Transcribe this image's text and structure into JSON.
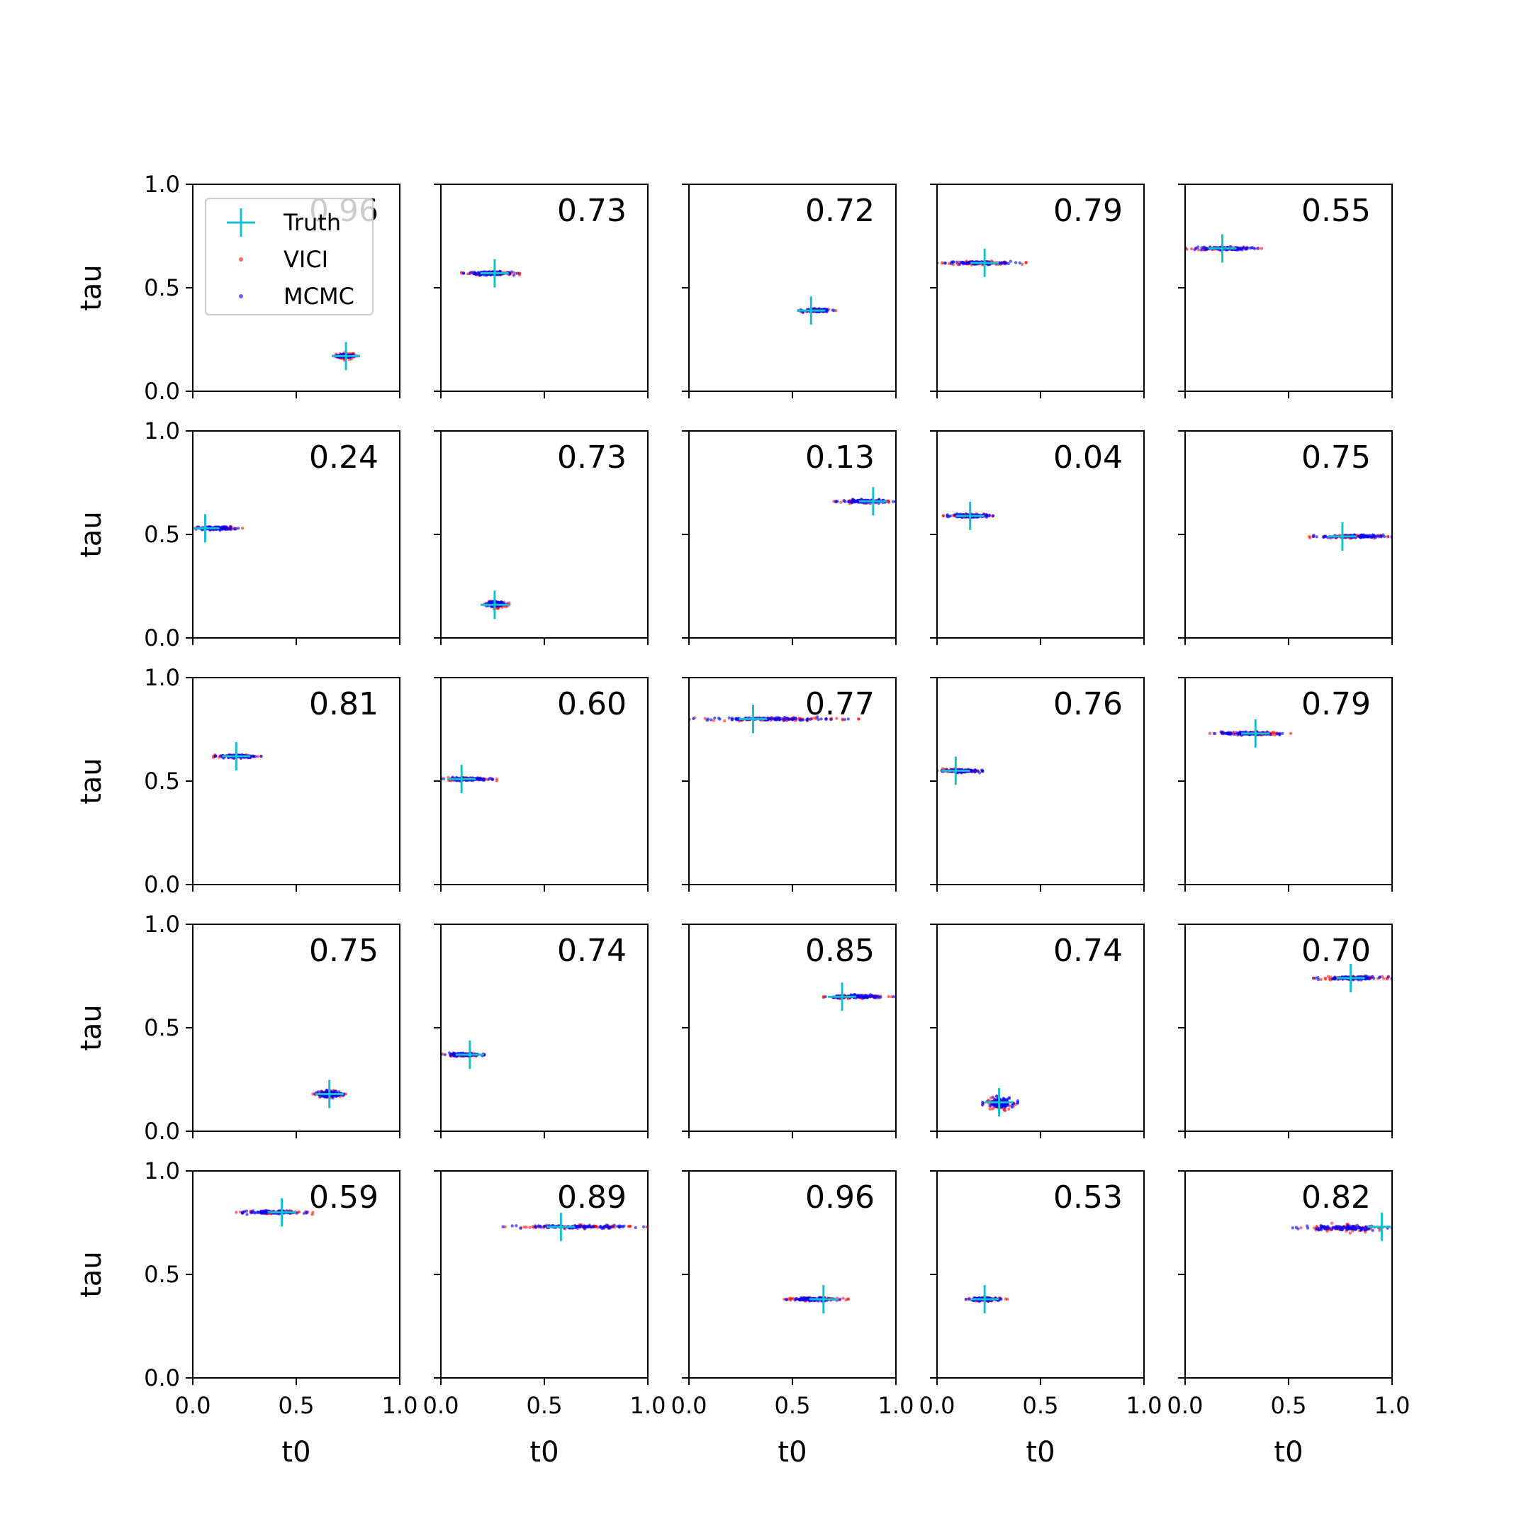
{
  "figure": {
    "xlabel": "t0",
    "ylabel": "tau",
    "xlim": [
      0,
      1
    ],
    "ylim": [
      0,
      1
    ],
    "xticks": [
      "0.0",
      "0.5",
      "1.0"
    ],
    "yticks": [
      "0.0",
      "0.5",
      "1.0"
    ],
    "colors": {
      "truth": "#17becf",
      "vici": "#ff0000",
      "mcmc": "#0000ff",
      "axes": "#000000"
    }
  },
  "legend": {
    "placement": "upper-left of first panel",
    "entries": [
      {
        "label": "Truth",
        "marker": "plus",
        "color": "#17becf"
      },
      {
        "label": "VICI",
        "marker": "dot",
        "color": "#ff0000"
      },
      {
        "label": "MCMC",
        "marker": "dot",
        "color": "#0000ff"
      }
    ]
  },
  "chart_data": {
    "type": "scatter",
    "grid": false,
    "rows": 5,
    "cols": 5,
    "panels": [
      {
        "score": "0.96",
        "truth": [
          0.74,
          0.17
        ],
        "vici": {
          "t0": [
            0.68,
            0.8
          ],
          "tau": [
            0.15,
            0.19
          ]
        },
        "mcmc": {
          "t0": [
            0.69,
            0.79
          ],
          "tau": [
            0.16,
            0.18
          ]
        }
      },
      {
        "score": "0.73",
        "truth": [
          0.26,
          0.57
        ],
        "vici": {
          "t0": [
            0.1,
            0.38
          ],
          "tau": [
            0.56,
            0.58
          ]
        },
        "mcmc": {
          "t0": [
            0.11,
            0.37
          ],
          "tau": [
            0.56,
            0.58
          ]
        }
      },
      {
        "score": "0.72",
        "truth": [
          0.59,
          0.39
        ],
        "vici": {
          "t0": [
            0.53,
            0.71
          ],
          "tau": [
            0.38,
            0.4
          ]
        },
        "mcmc": {
          "t0": [
            0.54,
            0.7
          ],
          "tau": [
            0.38,
            0.4
          ]
        }
      },
      {
        "score": "0.79",
        "truth": [
          0.23,
          0.62
        ],
        "vici": {
          "t0": [
            0.0,
            0.43
          ],
          "tau": [
            0.61,
            0.63
          ]
        },
        "mcmc": {
          "t0": [
            0.0,
            0.4
          ],
          "tau": [
            0.61,
            0.63
          ]
        }
      },
      {
        "score": "0.55",
        "truth": [
          0.18,
          0.69
        ],
        "vici": {
          "t0": [
            0.0,
            0.37
          ],
          "tau": [
            0.68,
            0.7
          ]
        },
        "mcmc": {
          "t0": [
            0.0,
            0.35
          ],
          "tau": [
            0.68,
            0.7
          ]
        }
      },
      {
        "score": "0.24",
        "truth": [
          0.06,
          0.53
        ],
        "vici": {
          "t0": [
            0.0,
            0.24
          ],
          "tau": [
            0.52,
            0.54
          ]
        },
        "mcmc": {
          "t0": [
            0.0,
            0.22
          ],
          "tau": [
            0.52,
            0.54
          ]
        }
      },
      {
        "score": "0.73",
        "truth": [
          0.26,
          0.16
        ],
        "vici": {
          "t0": [
            0.21,
            0.33
          ],
          "tau": [
            0.14,
            0.18
          ]
        },
        "mcmc": {
          "t0": [
            0.22,
            0.32
          ],
          "tau": [
            0.15,
            0.18
          ]
        }
      },
      {
        "score": "0.13",
        "truth": [
          0.89,
          0.66
        ],
        "vici": {
          "t0": [
            0.7,
            1.0
          ],
          "tau": [
            0.65,
            0.67
          ]
        },
        "mcmc": {
          "t0": [
            0.71,
            1.0
          ],
          "tau": [
            0.65,
            0.67
          ]
        }
      },
      {
        "score": "0.04",
        "truth": [
          0.16,
          0.59
        ],
        "vici": {
          "t0": [
            0.03,
            0.27
          ],
          "tau": [
            0.58,
            0.6
          ]
        },
        "mcmc": {
          "t0": [
            0.05,
            0.27
          ],
          "tau": [
            0.58,
            0.6
          ]
        }
      },
      {
        "score": "0.75",
        "truth": [
          0.76,
          0.49
        ],
        "vici": {
          "t0": [
            0.6,
            0.98
          ],
          "tau": [
            0.48,
            0.5
          ]
        },
        "mcmc": {
          "t0": [
            0.62,
            1.0
          ],
          "tau": [
            0.48,
            0.5
          ]
        }
      },
      {
        "score": "0.81",
        "truth": [
          0.21,
          0.62
        ],
        "vici": {
          "t0": [
            0.1,
            0.33
          ],
          "tau": [
            0.61,
            0.63
          ]
        },
        "mcmc": {
          "t0": [
            0.11,
            0.33
          ],
          "tau": [
            0.61,
            0.63
          ]
        }
      },
      {
        "score": "0.60",
        "truth": [
          0.1,
          0.51
        ],
        "vici": {
          "t0": [
            0.0,
            0.27
          ],
          "tau": [
            0.5,
            0.52
          ]
        },
        "mcmc": {
          "t0": [
            0.0,
            0.25
          ],
          "tau": [
            0.5,
            0.52
          ]
        }
      },
      {
        "score": "0.77",
        "truth": [
          0.31,
          0.8
        ],
        "vici": {
          "t0": [
            0.0,
            0.82
          ],
          "tau": [
            0.79,
            0.81
          ]
        },
        "mcmc": {
          "t0": [
            0.0,
            0.77
          ],
          "tau": [
            0.79,
            0.81
          ]
        }
      },
      {
        "score": "0.76",
        "truth": [
          0.09,
          0.55
        ],
        "vici": {
          "t0": [
            0.0,
            0.22
          ],
          "tau": [
            0.54,
            0.56
          ]
        },
        "mcmc": {
          "t0": [
            0.0,
            0.22
          ],
          "tau": [
            0.54,
            0.56
          ]
        }
      },
      {
        "score": "0.79",
        "truth": [
          0.34,
          0.73
        ],
        "vici": {
          "t0": [
            0.12,
            0.51
          ],
          "tau": [
            0.72,
            0.74
          ]
        },
        "mcmc": {
          "t0": [
            0.14,
            0.47
          ],
          "tau": [
            0.72,
            0.74
          ]
        }
      },
      {
        "score": "0.75",
        "truth": [
          0.66,
          0.18
        ],
        "vici": {
          "t0": [
            0.58,
            0.74
          ],
          "tau": [
            0.16,
            0.2
          ]
        },
        "mcmc": {
          "t0": [
            0.59,
            0.73
          ],
          "tau": [
            0.16,
            0.2
          ]
        }
      },
      {
        "score": "0.74",
        "truth": [
          0.14,
          0.37
        ],
        "vici": {
          "t0": [
            0.0,
            0.21
          ],
          "tau": [
            0.36,
            0.38
          ]
        },
        "mcmc": {
          "t0": [
            0.02,
            0.21
          ],
          "tau": [
            0.36,
            0.38
          ]
        }
      },
      {
        "score": "0.85",
        "truth": [
          0.74,
          0.65
        ],
        "vici": {
          "t0": [
            0.65,
            0.98
          ],
          "tau": [
            0.64,
            0.66
          ]
        },
        "mcmc": {
          "t0": [
            0.66,
            0.99
          ],
          "tau": [
            0.64,
            0.66
          ]
        }
      },
      {
        "score": "0.74",
        "truth": [
          0.3,
          0.14
        ],
        "vici": {
          "t0": [
            0.22,
            0.38
          ],
          "tau": [
            0.09,
            0.17
          ]
        },
        "mcmc": {
          "t0": [
            0.22,
            0.39
          ],
          "tau": [
            0.11,
            0.17
          ]
        }
      },
      {
        "score": "0.70",
        "truth": [
          0.8,
          0.74
        ],
        "vici": {
          "t0": [
            0.62,
            1.0
          ],
          "tau": [
            0.73,
            0.75
          ]
        },
        "mcmc": {
          "t0": [
            0.63,
            1.0
          ],
          "tau": [
            0.73,
            0.75
          ]
        }
      },
      {
        "score": "0.59",
        "truth": [
          0.43,
          0.8
        ],
        "vici": {
          "t0": [
            0.21,
            0.58
          ],
          "tau": [
            0.79,
            0.81
          ]
        },
        "mcmc": {
          "t0": [
            0.24,
            0.55
          ],
          "tau": [
            0.79,
            0.81
          ]
        }
      },
      {
        "score": "0.89",
        "truth": [
          0.58,
          0.73
        ],
        "vici": {
          "t0": [
            0.31,
            1.0
          ],
          "tau": [
            0.72,
            0.74
          ]
        },
        "mcmc": {
          "t0": [
            0.3,
            0.98
          ],
          "tau": [
            0.72,
            0.74
          ]
        }
      },
      {
        "score": "0.96",
        "truth": [
          0.65,
          0.38
        ],
        "vici": {
          "t0": [
            0.46,
            0.77
          ],
          "tau": [
            0.37,
            0.39
          ]
        },
        "mcmc": {
          "t0": [
            0.47,
            0.73
          ],
          "tau": [
            0.37,
            0.39
          ]
        }
      },
      {
        "score": "0.53",
        "truth": [
          0.23,
          0.38
        ],
        "vici": {
          "t0": [
            0.14,
            0.34
          ],
          "tau": [
            0.37,
            0.39
          ]
        },
        "mcmc": {
          "t0": [
            0.14,
            0.31
          ],
          "tau": [
            0.37,
            0.39
          ]
        }
      },
      {
        "score": "0.82",
        "truth": [
          0.95,
          0.73
        ],
        "vici": {
          "t0": [
            0.56,
            1.0
          ],
          "tau": [
            0.7,
            0.75
          ]
        },
        "mcmc": {
          "t0": [
            0.52,
            1.0
          ],
          "tau": [
            0.71,
            0.74
          ]
        }
      }
    ]
  }
}
